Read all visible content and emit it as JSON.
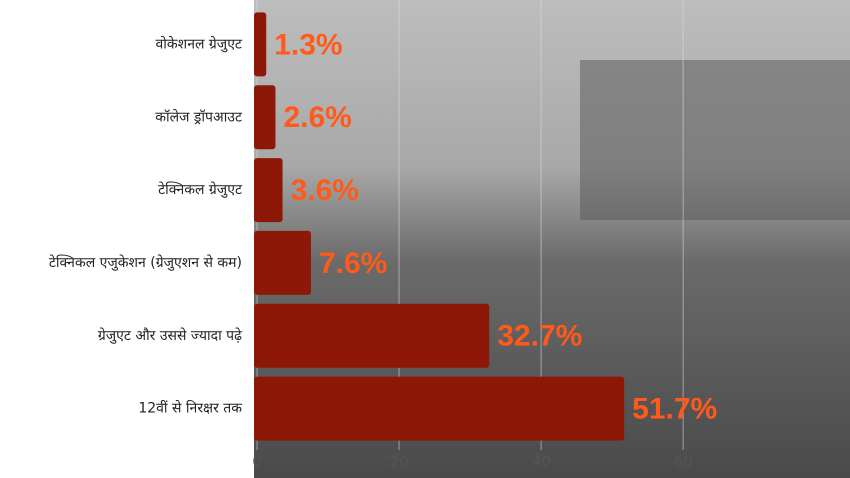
{
  "chart_data": {
    "type": "bar",
    "orientation": "horizontal",
    "categories": [
      "वोकेशनल ग्रेजुएट",
      "कॉलेज ड्रॉपआउट",
      "टेक्निकल ग्रेजुएट",
      "टेक्निकल एजुकेशन (ग्रेजुएशन से कम)",
      "ग्रेजुएट और उससे ज्यादा पढ़े",
      "12वीं से निरक्षर तक"
    ],
    "values": [
      1.3,
      2.6,
      3.6,
      7.6,
      32.7,
      51.7
    ],
    "value_labels": [
      "1.3%",
      "2.6%",
      "3.6%",
      "7.6%",
      "32.7%",
      "51.7%"
    ],
    "color": "#8e1808",
    "label_color": "#ff5a1a",
    "xlim": [
      0,
      83.5
    ],
    "xticks": [
      0,
      20,
      40,
      60
    ],
    "grid": true
  }
}
